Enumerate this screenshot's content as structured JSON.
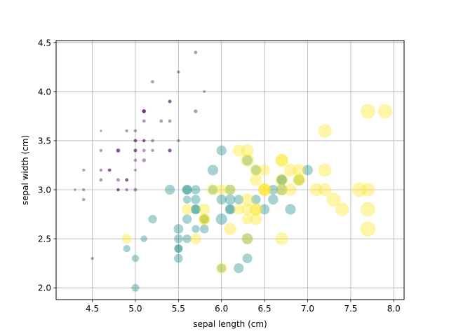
{
  "chart_data": {
    "type": "scatter",
    "title": "",
    "xlabel": "sepal length (cm)",
    "ylabel": "sepal width (cm)",
    "xlim": [
      4.08,
      8.12
    ],
    "ylim": [
      1.88,
      4.52
    ],
    "xticks": [
      4.5,
      5.0,
      5.5,
      6.0,
      6.5,
      7.0,
      7.5,
      8.0
    ],
    "xtick_labels": [
      "4.5",
      "5.0",
      "5.5",
      "6.0",
      "6.5",
      "7.0",
      "7.5",
      "8.0"
    ],
    "yticks": [
      2.0,
      2.5,
      3.0,
      3.5,
      4.0,
      4.5
    ],
    "ytick_labels": [
      "2.0",
      "2.5",
      "3.0",
      "3.5",
      "4.0",
      "4.5"
    ],
    "grid": true,
    "marker_size_encodes": "petal length (cm)",
    "series": [
      {
        "color": "#440154",
        "alpha": 0.4,
        "points": [
          [
            5.1,
            3.5,
            1.4
          ],
          [
            4.9,
            3.0,
            1.4
          ],
          [
            4.7,
            3.2,
            1.3
          ],
          [
            4.6,
            3.1,
            1.5
          ],
          [
            5.0,
            3.6,
            1.4
          ],
          [
            5.4,
            3.9,
            1.7
          ],
          [
            4.6,
            3.4,
            1.4
          ],
          [
            5.0,
            3.4,
            1.5
          ],
          [
            4.4,
            2.9,
            1.4
          ],
          [
            4.9,
            3.1,
            1.5
          ],
          [
            5.4,
            3.7,
            1.5
          ],
          [
            4.8,
            3.4,
            1.6
          ],
          [
            4.8,
            3.0,
            1.4
          ],
          [
            4.3,
            3.0,
            1.1
          ],
          [
            5.8,
            4.0,
            1.2
          ],
          [
            5.7,
            4.4,
            1.5
          ],
          [
            5.4,
            3.9,
            1.3
          ],
          [
            5.1,
            3.5,
            1.4
          ],
          [
            5.7,
            3.8,
            1.7
          ],
          [
            5.1,
            3.8,
            1.5
          ],
          [
            5.4,
            3.4,
            1.7
          ],
          [
            5.1,
            3.7,
            1.5
          ],
          [
            4.6,
            3.6,
            1.0
          ],
          [
            5.1,
            3.3,
            1.7
          ],
          [
            4.8,
            3.4,
            1.9
          ],
          [
            5.0,
            3.0,
            1.6
          ],
          [
            5.0,
            3.4,
            1.6
          ],
          [
            5.2,
            3.5,
            1.5
          ],
          [
            5.2,
            3.4,
            1.4
          ],
          [
            4.7,
            3.2,
            1.6
          ],
          [
            4.8,
            3.1,
            1.6
          ],
          [
            5.4,
            3.4,
            1.5
          ],
          [
            5.2,
            4.1,
            1.5
          ],
          [
            5.5,
            4.2,
            1.4
          ],
          [
            4.9,
            3.1,
            1.5
          ],
          [
            5.0,
            3.2,
            1.2
          ],
          [
            5.5,
            3.5,
            1.3
          ],
          [
            4.9,
            3.6,
            1.4
          ],
          [
            4.4,
            3.0,
            1.3
          ],
          [
            5.1,
            3.4,
            1.5
          ],
          [
            5.0,
            3.5,
            1.3
          ],
          [
            4.5,
            2.3,
            1.3
          ],
          [
            4.4,
            3.2,
            1.3
          ],
          [
            5.0,
            3.5,
            1.6
          ],
          [
            5.1,
            3.8,
            1.9
          ],
          [
            4.8,
            3.0,
            1.4
          ],
          [
            5.1,
            3.8,
            1.6
          ],
          [
            4.6,
            3.2,
            1.4
          ],
          [
            5.3,
            3.7,
            1.5
          ],
          [
            5.0,
            3.3,
            1.4
          ]
        ]
      },
      {
        "color": "#21918c",
        "alpha": 0.4,
        "points": [
          [
            7.0,
            3.2,
            4.7
          ],
          [
            6.4,
            3.2,
            4.5
          ],
          [
            6.9,
            3.1,
            4.9
          ],
          [
            5.5,
            2.3,
            4.0
          ],
          [
            6.5,
            2.8,
            4.6
          ],
          [
            5.7,
            2.8,
            4.5
          ],
          [
            6.3,
            3.3,
            4.7
          ],
          [
            4.9,
            2.4,
            3.3
          ],
          [
            6.6,
            2.9,
            4.6
          ],
          [
            5.2,
            2.7,
            3.9
          ],
          [
            5.0,
            2.0,
            3.5
          ],
          [
            5.9,
            3.0,
            4.2
          ],
          [
            6.0,
            2.2,
            4.0
          ],
          [
            6.1,
            2.9,
            4.7
          ],
          [
            5.6,
            2.9,
            3.6
          ],
          [
            6.7,
            3.1,
            4.4
          ],
          [
            5.6,
            3.0,
            4.5
          ],
          [
            5.8,
            2.7,
            4.1
          ],
          [
            6.2,
            2.2,
            4.5
          ],
          [
            5.6,
            2.5,
            3.9
          ],
          [
            5.9,
            3.2,
            4.8
          ],
          [
            6.1,
            2.8,
            4.0
          ],
          [
            6.3,
            2.5,
            4.9
          ],
          [
            6.1,
            2.8,
            4.7
          ],
          [
            6.4,
            2.9,
            4.3
          ],
          [
            6.6,
            3.0,
            4.4
          ],
          [
            6.8,
            2.8,
            4.8
          ],
          [
            6.7,
            3.0,
            5.0
          ],
          [
            6.0,
            2.9,
            4.5
          ],
          [
            5.7,
            2.6,
            3.5
          ],
          [
            5.5,
            2.4,
            3.8
          ],
          [
            5.5,
            2.4,
            3.7
          ],
          [
            5.8,
            2.7,
            3.9
          ],
          [
            6.0,
            2.7,
            5.1
          ],
          [
            5.4,
            3.0,
            4.5
          ],
          [
            6.0,
            3.4,
            4.5
          ],
          [
            6.7,
            3.1,
            4.7
          ],
          [
            6.3,
            2.3,
            4.4
          ],
          [
            5.6,
            3.0,
            4.1
          ],
          [
            5.5,
            2.5,
            4.0
          ],
          [
            5.5,
            2.6,
            4.4
          ],
          [
            6.1,
            3.0,
            4.6
          ],
          [
            5.8,
            2.6,
            4.0
          ],
          [
            5.0,
            2.3,
            3.3
          ],
          [
            5.6,
            2.7,
            4.2
          ],
          [
            5.7,
            3.0,
            4.2
          ],
          [
            5.7,
            2.9,
            4.2
          ],
          [
            6.2,
            2.9,
            4.3
          ],
          [
            5.1,
            2.5,
            3.0
          ],
          [
            5.7,
            2.8,
            4.1
          ]
        ]
      },
      {
        "color": "#fde725",
        "alpha": 0.4,
        "points": [
          [
            6.3,
            3.3,
            6.0
          ],
          [
            5.8,
            2.7,
            5.1
          ],
          [
            7.1,
            3.0,
            5.9
          ],
          [
            6.3,
            2.9,
            5.6
          ],
          [
            6.5,
            3.0,
            5.8
          ],
          [
            7.6,
            3.0,
            6.6
          ],
          [
            4.9,
            2.5,
            4.5
          ],
          [
            7.3,
            2.9,
            6.3
          ],
          [
            6.7,
            2.5,
            5.8
          ],
          [
            7.2,
            3.6,
            6.1
          ],
          [
            6.5,
            3.2,
            5.1
          ],
          [
            6.4,
            2.7,
            5.3
          ],
          [
            6.8,
            3.0,
            5.5
          ],
          [
            5.7,
            2.5,
            5.0
          ],
          [
            5.8,
            2.8,
            5.1
          ],
          [
            6.4,
            3.2,
            5.3
          ],
          [
            6.5,
            3.0,
            5.5
          ],
          [
            7.7,
            3.8,
            6.7
          ],
          [
            7.7,
            2.6,
            6.9
          ],
          [
            6.0,
            2.2,
            5.0
          ],
          [
            6.9,
            3.2,
            5.7
          ],
          [
            5.6,
            2.8,
            4.9
          ],
          [
            7.7,
            2.8,
            6.7
          ],
          [
            6.3,
            2.7,
            4.9
          ],
          [
            6.7,
            3.3,
            5.7
          ],
          [
            7.2,
            3.2,
            6.0
          ],
          [
            6.2,
            2.8,
            4.8
          ],
          [
            6.1,
            3.0,
            4.9
          ],
          [
            6.4,
            2.8,
            5.6
          ],
          [
            7.2,
            3.0,
            5.8
          ],
          [
            7.4,
            2.8,
            6.1
          ],
          [
            7.9,
            3.8,
            6.4
          ],
          [
            6.4,
            2.8,
            5.6
          ],
          [
            6.3,
            2.8,
            5.1
          ],
          [
            6.1,
            2.6,
            5.6
          ],
          [
            7.7,
            3.0,
            6.1
          ],
          [
            6.3,
            3.4,
            5.6
          ],
          [
            6.4,
            3.1,
            5.5
          ],
          [
            6.0,
            3.0,
            4.8
          ],
          [
            6.9,
            3.1,
            5.4
          ],
          [
            6.7,
            3.1,
            5.6
          ],
          [
            6.9,
            3.1,
            5.1
          ],
          [
            5.8,
            2.7,
            5.1
          ],
          [
            6.8,
            3.2,
            5.9
          ],
          [
            6.7,
            3.3,
            5.7
          ],
          [
            6.7,
            3.0,
            5.2
          ],
          [
            6.3,
            2.5,
            5.0
          ],
          [
            6.5,
            3.0,
            5.2
          ],
          [
            6.2,
            3.4,
            5.4
          ],
          [
            5.9,
            3.0,
            5.1
          ]
        ]
      }
    ]
  }
}
